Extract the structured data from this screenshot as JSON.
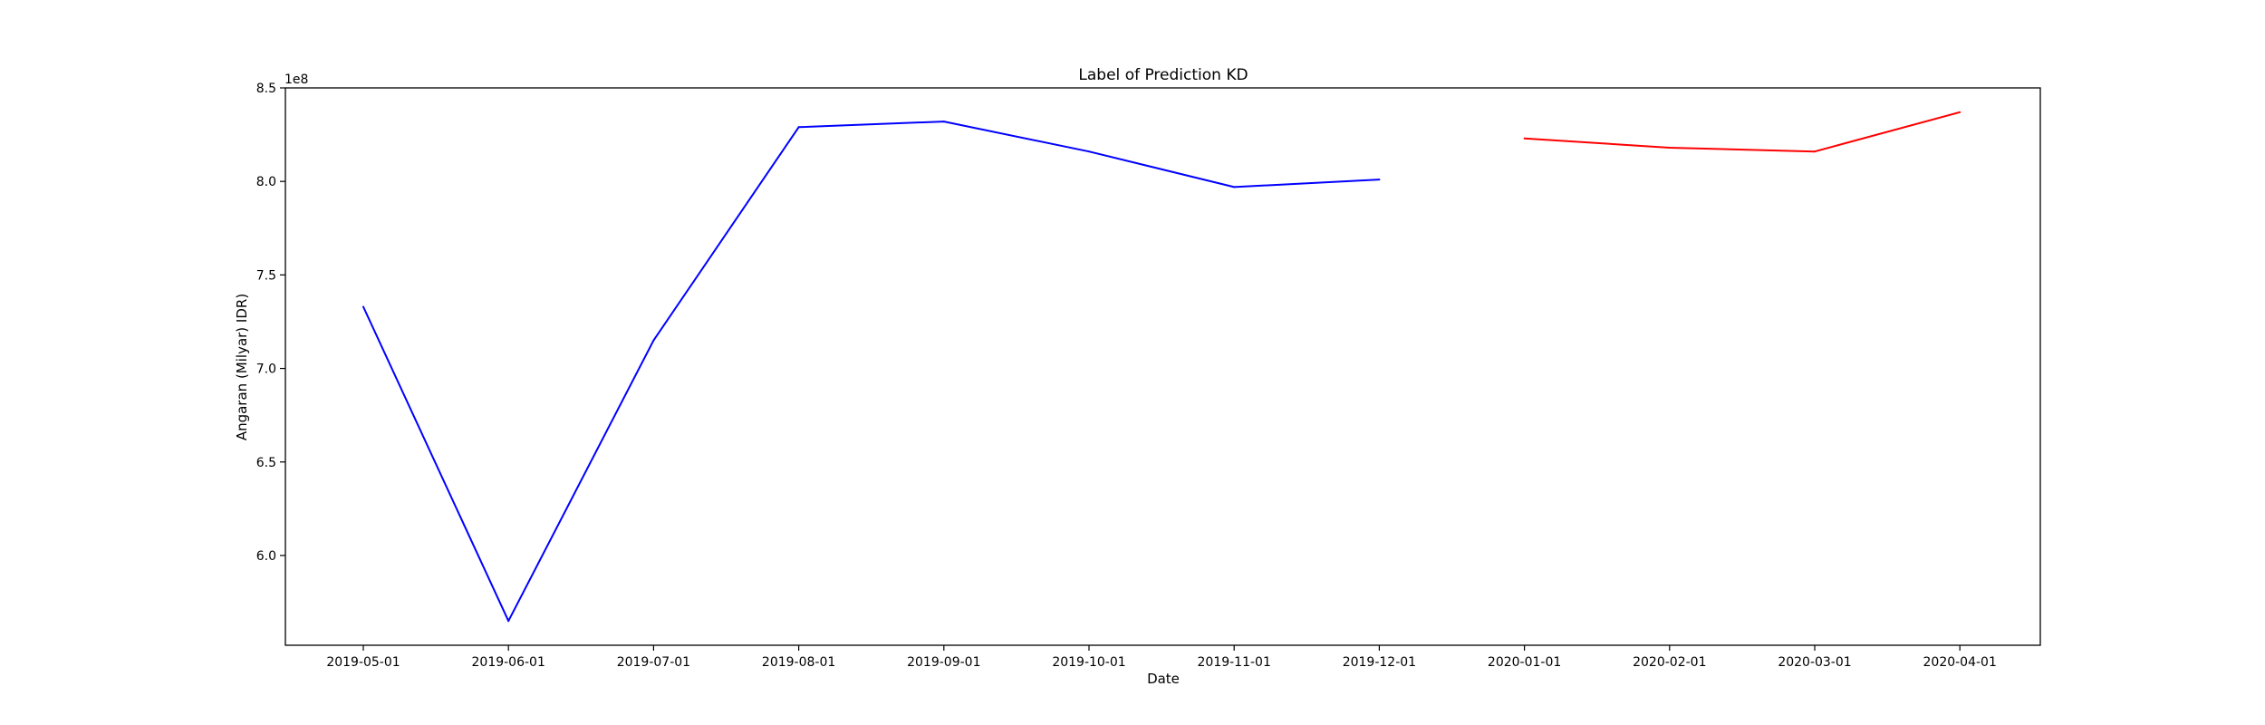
{
  "chart_data": {
    "type": "line",
    "title": "Label of Prediction KD",
    "xlabel": "Date",
    "ylabel": "Angaran (Milyar) IDR)",
    "y_offset_label": "1e8",
    "x_tick_labels": [
      "2019-05-01",
      "2019-06-01",
      "2019-07-01",
      "2019-08-01",
      "2019-09-01",
      "2019-10-01",
      "2019-11-01",
      "2019-12-01",
      "2020-01-01",
      "2020-02-01",
      "2020-03-01",
      "2020-04-01"
    ],
    "y_ticks": [
      6.0,
      6.5,
      7.0,
      7.5,
      8.0,
      8.5
    ],
    "y_tick_labels": [
      "6.0",
      "6.5",
      "7.0",
      "7.5",
      "8.0",
      "8.5"
    ],
    "ylim": [
      5.52,
      8.5
    ],
    "ylim_units": "1e8",
    "grid": false,
    "legend": false,
    "series": [
      {
        "color": "#0000ff",
        "x": [
          "2019-05-01",
          "2019-06-01",
          "2019-07-01",
          "2019-08-01",
          "2019-09-01",
          "2019-10-01",
          "2019-11-01",
          "2019-12-01"
        ],
        "values": [
          7.33,
          5.65,
          7.15,
          8.29,
          8.32,
          8.16,
          7.97,
          8.01
        ]
      },
      {
        "color": "#ff0000",
        "x": [
          "2020-01-01",
          "2020-02-01",
          "2020-03-01",
          "2020-04-01"
        ],
        "values": [
          8.23,
          8.18,
          8.16,
          8.37
        ]
      }
    ]
  }
}
